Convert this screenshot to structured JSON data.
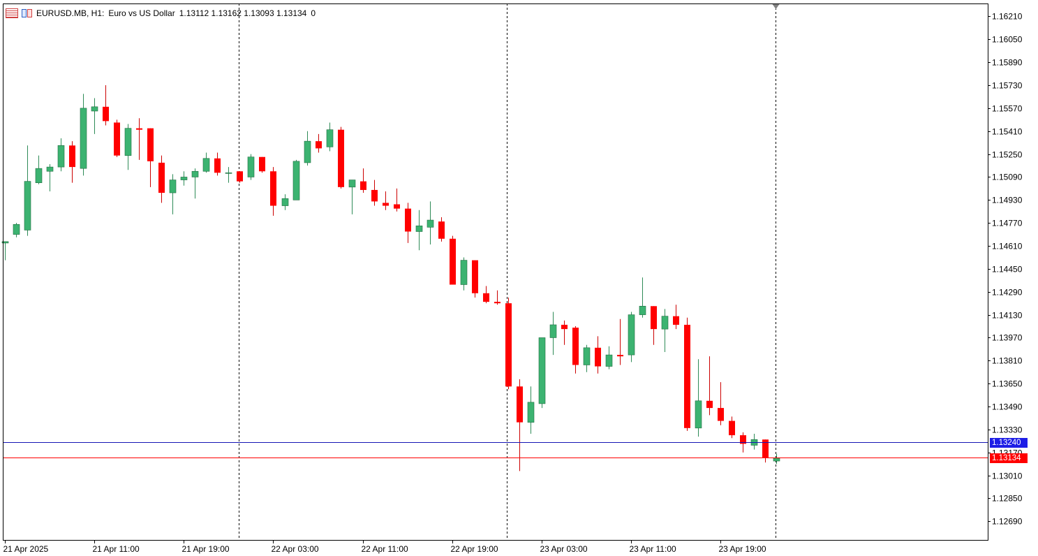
{
  "header": {
    "symbol": "EURUSD.MB, H1:",
    "description": "Euro vs US Dollar",
    "ohlc": "1.13112 1.13162 1.13093 1.13134",
    "extra": "0"
  },
  "colors": {
    "bull": "#3CB371",
    "bear": "#FF0000",
    "wick_bull": "#2E8B57",
    "wick_bear": "#CC0000",
    "bid_line": "#FF0000",
    "ask_line": "#1414B4",
    "ask_tag": "#1E1EE6",
    "bid_tag": "#FF0000",
    "separator": "#000000"
  },
  "price_tags": {
    "ask": {
      "label": "1.13240",
      "value": 1.1324
    },
    "bid": {
      "label": "1.13134",
      "value": 1.13134
    }
  },
  "chart_data": {
    "type": "candlestick",
    "symbol": "EURUSD.MB",
    "timeframe": "H1",
    "ylim": [
      1.1256,
      1.163
    ],
    "yticks": [
      "1.16210",
      "1.16050",
      "1.15890",
      "1.15730",
      "1.15570",
      "1.15410",
      "1.15250",
      "1.15090",
      "1.14930",
      "1.14770",
      "1.14610",
      "1.14450",
      "1.14290",
      "1.14130",
      "1.13970",
      "1.13810",
      "1.13650",
      "1.13490",
      "1.13330",
      "1.13170",
      "1.13010",
      "1.12850",
      "1.12690"
    ],
    "xticks": [
      {
        "index": 0,
        "label": "21 Apr 2025"
      },
      {
        "index": 8,
        "label": "21 Apr 11:00"
      },
      {
        "index": 16,
        "label": "21 Apr 19:00"
      },
      {
        "index": 24,
        "label": "22 Apr 03:00"
      },
      {
        "index": 32,
        "label": "22 Apr 11:00"
      },
      {
        "index": 40,
        "label": "22 Apr 19:00"
      },
      {
        "index": 48,
        "label": "23 Apr 03:00"
      },
      {
        "index": 56,
        "label": "23 Apr 11:00"
      },
      {
        "index": 64,
        "label": "23 Apr 19:00"
      }
    ],
    "day_separators": [
      20.9,
      44.9,
      68.9
    ],
    "current_marker_index": 68.9,
    "candles": [
      {
        "o": 1.1463,
        "h": 1.1464,
        "l": 1.1451,
        "c": 1.1464
      },
      {
        "o": 1.1469,
        "h": 1.1477,
        "l": 1.1467,
        "c": 1.1476
      },
      {
        "o": 1.1472,
        "h": 1.1531,
        "l": 1.1468,
        "c": 1.1506
      },
      {
        "o": 1.1505,
        "h": 1.1524,
        "l": 1.1504,
        "c": 1.1515
      },
      {
        "o": 1.1513,
        "h": 1.1518,
        "l": 1.1499,
        "c": 1.1516
      },
      {
        "o": 1.1516,
        "h": 1.1536,
        "l": 1.1513,
        "c": 1.1531
      },
      {
        "o": 1.1531,
        "h": 1.1534,
        "l": 1.1505,
        "c": 1.1516
      },
      {
        "o": 1.1515,
        "h": 1.1567,
        "l": 1.151,
        "c": 1.1557
      },
      {
        "o": 1.1555,
        "h": 1.1564,
        "l": 1.1539,
        "c": 1.1558
      },
      {
        "o": 1.1558,
        "h": 1.1573,
        "l": 1.1545,
        "c": 1.1548
      },
      {
        "o": 1.1547,
        "h": 1.1549,
        "l": 1.1523,
        "c": 1.1524
      },
      {
        "o": 1.1524,
        "h": 1.1546,
        "l": 1.1514,
        "c": 1.1543
      },
      {
        "o": 1.1543,
        "h": 1.155,
        "l": 1.1521,
        "c": 1.1542
      },
      {
        "o": 1.1543,
        "h": 1.1543,
        "l": 1.1502,
        "c": 1.152
      },
      {
        "o": 1.1519,
        "h": 1.1524,
        "l": 1.1491,
        "c": 1.1498
      },
      {
        "o": 1.1498,
        "h": 1.1511,
        "l": 1.1483,
        "c": 1.1507
      },
      {
        "o": 1.1507,
        "h": 1.1513,
        "l": 1.1503,
        "c": 1.1509
      },
      {
        "o": 1.1509,
        "h": 1.1515,
        "l": 1.1494,
        "c": 1.1513
      },
      {
        "o": 1.1513,
        "h": 1.1526,
        "l": 1.1512,
        "c": 1.1522
      },
      {
        "o": 1.1522,
        "h": 1.1526,
        "l": 1.151,
        "c": 1.1512
      },
      {
        "o": 1.1512,
        "h": 1.1516,
        "l": 1.1505,
        "c": 1.1512
      },
      {
        "o": 1.1513,
        "h": 1.1513,
        "l": 1.1505,
        "c": 1.1506
      },
      {
        "o": 1.1509,
        "h": 1.1525,
        "l": 1.1507,
        "c": 1.1523
      },
      {
        "o": 1.1523,
        "h": 1.1523,
        "l": 1.1512,
        "c": 1.1513
      },
      {
        "o": 1.1513,
        "h": 1.1516,
        "l": 1.1482,
        "c": 1.1489
      },
      {
        "o": 1.1489,
        "h": 1.1497,
        "l": 1.1486,
        "c": 1.1494
      },
      {
        "o": 1.1493,
        "h": 1.1521,
        "l": 1.1493,
        "c": 1.152
      },
      {
        "o": 1.1519,
        "h": 1.1541,
        "l": 1.1517,
        "c": 1.1534
      },
      {
        "o": 1.1534,
        "h": 1.1539,
        "l": 1.1526,
        "c": 1.1529
      },
      {
        "o": 1.153,
        "h": 1.1547,
        "l": 1.1527,
        "c": 1.1542
      },
      {
        "o": 1.1542,
        "h": 1.1544,
        "l": 1.1501,
        "c": 1.1502
      },
      {
        "o": 1.1502,
        "h": 1.1507,
        "l": 1.1483,
        "c": 1.1507
      },
      {
        "o": 1.1506,
        "h": 1.1515,
        "l": 1.1498,
        "c": 1.15
      },
      {
        "o": 1.15,
        "h": 1.1507,
        "l": 1.1489,
        "c": 1.1492
      },
      {
        "o": 1.1491,
        "h": 1.1499,
        "l": 1.1486,
        "c": 1.1489
      },
      {
        "o": 1.149,
        "h": 1.1501,
        "l": 1.1485,
        "c": 1.1487
      },
      {
        "o": 1.1487,
        "h": 1.1491,
        "l": 1.1463,
        "c": 1.1471
      },
      {
        "o": 1.1471,
        "h": 1.1486,
        "l": 1.1458,
        "c": 1.1475
      },
      {
        "o": 1.1474,
        "h": 1.1492,
        "l": 1.1462,
        "c": 1.1479
      },
      {
        "o": 1.1478,
        "h": 1.1481,
        "l": 1.1464,
        "c": 1.1466
      },
      {
        "o": 1.1466,
        "h": 1.1468,
        "l": 1.1434,
        "c": 1.1434
      },
      {
        "o": 1.1434,
        "h": 1.1453,
        "l": 1.143,
        "c": 1.1451
      },
      {
        "o": 1.1451,
        "h": 1.1451,
        "l": 1.1425,
        "c": 1.1428
      },
      {
        "o": 1.1428,
        "h": 1.1433,
        "l": 1.1421,
        "c": 1.1422
      },
      {
        "o": 1.1422,
        "h": 1.143,
        "l": 1.142,
        "c": 1.1421
      },
      {
        "o": 1.1421,
        "h": 1.1425,
        "l": 1.1361,
        "c": 1.1363
      },
      {
        "o": 1.1363,
        "h": 1.1368,
        "l": 1.1304,
        "c": 1.1338
      },
      {
        "o": 1.1338,
        "h": 1.1363,
        "l": 1.133,
        "c": 1.1352
      },
      {
        "o": 1.1351,
        "h": 1.1397,
        "l": 1.1348,
        "c": 1.1397
      },
      {
        "o": 1.1397,
        "h": 1.1415,
        "l": 1.1385,
        "c": 1.1406
      },
      {
        "o": 1.1406,
        "h": 1.1409,
        "l": 1.1392,
        "c": 1.1403
      },
      {
        "o": 1.1404,
        "h": 1.1405,
        "l": 1.1372,
        "c": 1.1378
      },
      {
        "o": 1.1378,
        "h": 1.1392,
        "l": 1.1373,
        "c": 1.139
      },
      {
        "o": 1.139,
        "h": 1.1398,
        "l": 1.1372,
        "c": 1.1377
      },
      {
        "o": 1.1377,
        "h": 1.1391,
        "l": 1.1375,
        "c": 1.1385
      },
      {
        "o": 1.1385,
        "h": 1.141,
        "l": 1.1378,
        "c": 1.1384
      },
      {
        "o": 1.1385,
        "h": 1.1415,
        "l": 1.138,
        "c": 1.1413
      },
      {
        "o": 1.1413,
        "h": 1.1439,
        "l": 1.1411,
        "c": 1.1419
      },
      {
        "o": 1.1419,
        "h": 1.1419,
        "l": 1.1392,
        "c": 1.1403
      },
      {
        "o": 1.1403,
        "h": 1.1417,
        "l": 1.1387,
        "c": 1.1412
      },
      {
        "o": 1.1412,
        "h": 1.142,
        "l": 1.1403,
        "c": 1.1406
      },
      {
        "o": 1.1406,
        "h": 1.1411,
        "l": 1.1332,
        "c": 1.1334
      },
      {
        "o": 1.1334,
        "h": 1.1382,
        "l": 1.1328,
        "c": 1.1353
      },
      {
        "o": 1.1353,
        "h": 1.1384,
        "l": 1.1343,
        "c": 1.1348
      },
      {
        "o": 1.1348,
        "h": 1.1366,
        "l": 1.1336,
        "c": 1.1339
      },
      {
        "o": 1.1339,
        "h": 1.1342,
        "l": 1.1327,
        "c": 1.1329
      },
      {
        "o": 1.1329,
        "h": 1.1331,
        "l": 1.1317,
        "c": 1.1323
      },
      {
        "o": 1.1322,
        "h": 1.133,
        "l": 1.1319,
        "c": 1.1326
      },
      {
        "o": 1.1326,
        "h": 1.1326,
        "l": 1.131,
        "c": 1.1313
      },
      {
        "o": 1.1311,
        "h": 1.1316,
        "l": 1.1309,
        "c": 1.1313
      }
    ]
  }
}
